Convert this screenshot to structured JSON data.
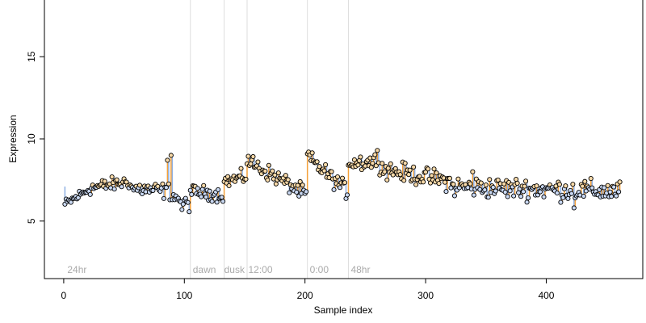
{
  "chart_data": {
    "type": "scatter",
    "xlabel": "Sample index",
    "ylabel": "Expression",
    "xlim": [
      -16,
      480
    ],
    "ylim": [
      1.5,
      18.5
    ],
    "xticks": [
      0,
      100,
      200,
      300,
      400
    ],
    "yticks": [
      5,
      10,
      15
    ],
    "grid": false,
    "colors": {
      "above_baseline_drop": "#f4a13a",
      "below_baseline_drop": "#8fb0e3",
      "point_fill": "#f7d9a8",
      "point_fill_alt": "#c9d8f2",
      "point_stroke": "#000000",
      "separator": "#dddddd",
      "annotation": "#aaaaaa"
    },
    "separators": [
      105,
      133,
      152,
      202,
      236
    ],
    "annotations": [
      {
        "text": "24hr",
        "x": 3
      },
      {
        "text": "dawn",
        "x": 107
      },
      {
        "text": "dusk",
        "x": 133
      },
      {
        "text": "12:00",
        "x": 153
      },
      {
        "text": "0:00",
        "x": 204
      },
      {
        "text": "48hr",
        "x": 238
      }
    ],
    "segments": [
      {
        "x0": 1,
        "x1": 20,
        "y0": 6.0,
        "y1": 6.9,
        "noise": 0.25
      },
      {
        "x0": 21,
        "x1": 55,
        "y0": 7.0,
        "y1": 7.4,
        "noise": 0.3
      },
      {
        "x0": 56,
        "x1": 88,
        "y0": 7.0,
        "y1": 6.8,
        "noise": 0.35
      },
      {
        "x0": 89,
        "x1": 104,
        "y0": 6.6,
        "y1": 6.0,
        "noise": 0.3
      },
      {
        "x0": 105,
        "x1": 132,
        "y0": 6.8,
        "y1": 6.6,
        "noise": 0.3
      },
      {
        "x0": 133,
        "x1": 151,
        "y0": 7.4,
        "y1": 7.7,
        "noise": 0.3
      },
      {
        "x0": 152,
        "x1": 201,
        "y0": 8.7,
        "y1": 6.6,
        "noise": 0.35
      },
      {
        "x0": 202,
        "x1": 235,
        "y0": 8.9,
        "y1": 6.8,
        "noise": 0.35
      },
      {
        "x0": 236,
        "x1": 262,
        "y0": 8.6,
        "y1": 8.6,
        "noise": 0.4
      },
      {
        "x0": 263,
        "x1": 320,
        "y0": 8.2,
        "y1": 7.4,
        "noise": 0.4
      },
      {
        "x0": 321,
        "x1": 461,
        "y0": 7.1,
        "y1": 6.8,
        "noise": 0.45
      }
    ],
    "outliers": [
      {
        "x": 86,
        "y": 8.7
      },
      {
        "x": 89,
        "y": 9.0
      },
      {
        "x": 203,
        "y": 9.2
      },
      {
        "x": 260,
        "y": 9.3
      },
      {
        "x": 339,
        "y": 8.0
      },
      {
        "x": 423,
        "y": 5.8
      },
      {
        "x": 98,
        "y": 5.7
      }
    ],
    "baseline": 7.1
  }
}
